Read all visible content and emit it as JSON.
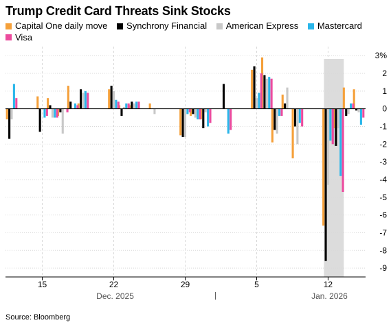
{
  "title": "Trump Credit Card Threats Sink Stocks",
  "source": "Source: Bloomberg",
  "colors": {
    "capital_one": "#f5a03a",
    "synchrony": "#000000",
    "amex": "#c8c8c8",
    "mastercard": "#2ab6ea",
    "visa": "#ec4b9e",
    "highlight": "#dcdcdc"
  },
  "chart_data": {
    "type": "bar",
    "title": "Trump Credit Card Threats Sink Stocks",
    "ylabel": "",
    "xlabel": "",
    "unit": "%",
    "ylim": [
      -9.5,
      3.2
    ],
    "yticks": [
      {
        "value": 3,
        "label": "3%"
      },
      {
        "value": 2,
        "label": "2"
      },
      {
        "value": 1,
        "label": "1"
      },
      {
        "value": 0,
        "label": "0"
      },
      {
        "value": -1,
        "label": "-1"
      },
      {
        "value": -2,
        "label": "-2"
      },
      {
        "value": -3,
        "label": "-3"
      },
      {
        "value": -4,
        "label": "-4"
      },
      {
        "value": -5,
        "label": "-5"
      },
      {
        "value": -6,
        "label": "-6"
      },
      {
        "value": -7,
        "label": "-7"
      },
      {
        "value": -8,
        "label": "-8"
      },
      {
        "value": -9,
        "label": "-9"
      }
    ],
    "xticks": [
      {
        "date": "2025-12-15",
        "label": "15"
      },
      {
        "date": "2025-12-22",
        "label": "22"
      },
      {
        "date": "2025-12-29",
        "label": "29"
      },
      {
        "date": "2026-01-05",
        "label": "5"
      },
      {
        "date": "2026-01-12",
        "label": "12"
      }
    ],
    "month_labels": [
      {
        "date": "2025-12-22",
        "label": "Dec. 2025"
      },
      {
        "date": "2026-01-12",
        "label": "Jan. 2026"
      }
    ],
    "highlight": {
      "from": "2026-01-12",
      "to": "2026-01-13"
    },
    "legend_position": "top",
    "grid": true,
    "categories": [
      "2025-12-12",
      "2025-12-15",
      "2025-12-16",
      "2025-12-17",
      "2025-12-18",
      "2025-12-19",
      "2025-12-22",
      "2025-12-23",
      "2025-12-24",
      "2025-12-26",
      "2025-12-29",
      "2025-12-30",
      "2025-12-31",
      "2026-01-02",
      "2026-01-05",
      "2026-01-06",
      "2026-01-07",
      "2026-01-08",
      "2026-01-09",
      "2026-01-12",
      "2026-01-13",
      "2026-01-14",
      "2026-01-15"
    ],
    "series": [
      {
        "name": "Capital One daily move",
        "color": "#f5a03a",
        "values": [
          -0.6,
          0.7,
          0.6,
          -0.4,
          1.3,
          0.3,
          1.1,
          0.2,
          0.2,
          0.3,
          -1.5,
          -0.4,
          -0.6,
          0.0,
          2.2,
          2.9,
          -1.9,
          0.8,
          -2.8,
          -6.6,
          -1.1,
          1.2,
          1.1
        ]
      },
      {
        "name": "Synchrony Financial",
        "color": "#000000",
        "values": [
          -1.7,
          -1.3,
          0.2,
          -0.2,
          0.4,
          1.1,
          1.3,
          -0.4,
          0.4,
          0.0,
          -1.6,
          -0.3,
          -1.1,
          1.4,
          2.4,
          1.9,
          -1.2,
          0.3,
          -1.0,
          -8.6,
          -2.1,
          -0.4,
          -0.1
        ]
      },
      {
        "name": "American Express",
        "color": "#c8c8c8",
        "values": [
          -0.6,
          0.0,
          -0.5,
          -1.4,
          0.0,
          0.9,
          1.0,
          0.1,
          0.3,
          -0.3,
          -1.6,
          -0.5,
          -0.2,
          0.0,
          0.6,
          1.7,
          -1.4,
          1.2,
          -2.0,
          -4.3,
          -1.1,
          -0.3,
          -0.2
        ]
      },
      {
        "name": "Mastercard",
        "color": "#2ab6ea",
        "values": [
          1.4,
          -0.5,
          -0.5,
          0.0,
          0.3,
          1.0,
          0.5,
          0.3,
          0.4,
          0.0,
          -0.3,
          -0.6,
          -1.0,
          -1.4,
          0.9,
          1.8,
          -0.4,
          0.0,
          -0.8,
          -1.8,
          -3.8,
          0.3,
          -0.9
        ]
      },
      {
        "name": "Visa",
        "color": "#ec4b9e",
        "values": [
          0.6,
          -0.4,
          -0.5,
          -0.2,
          0.2,
          0.9,
          0.4,
          0.3,
          0.4,
          0.0,
          -0.2,
          -0.6,
          -0.8,
          -1.2,
          2.0,
          1.7,
          -0.4,
          0.0,
          -1.0,
          -2.0,
          -4.7,
          0.3,
          -0.5
        ]
      }
    ]
  }
}
